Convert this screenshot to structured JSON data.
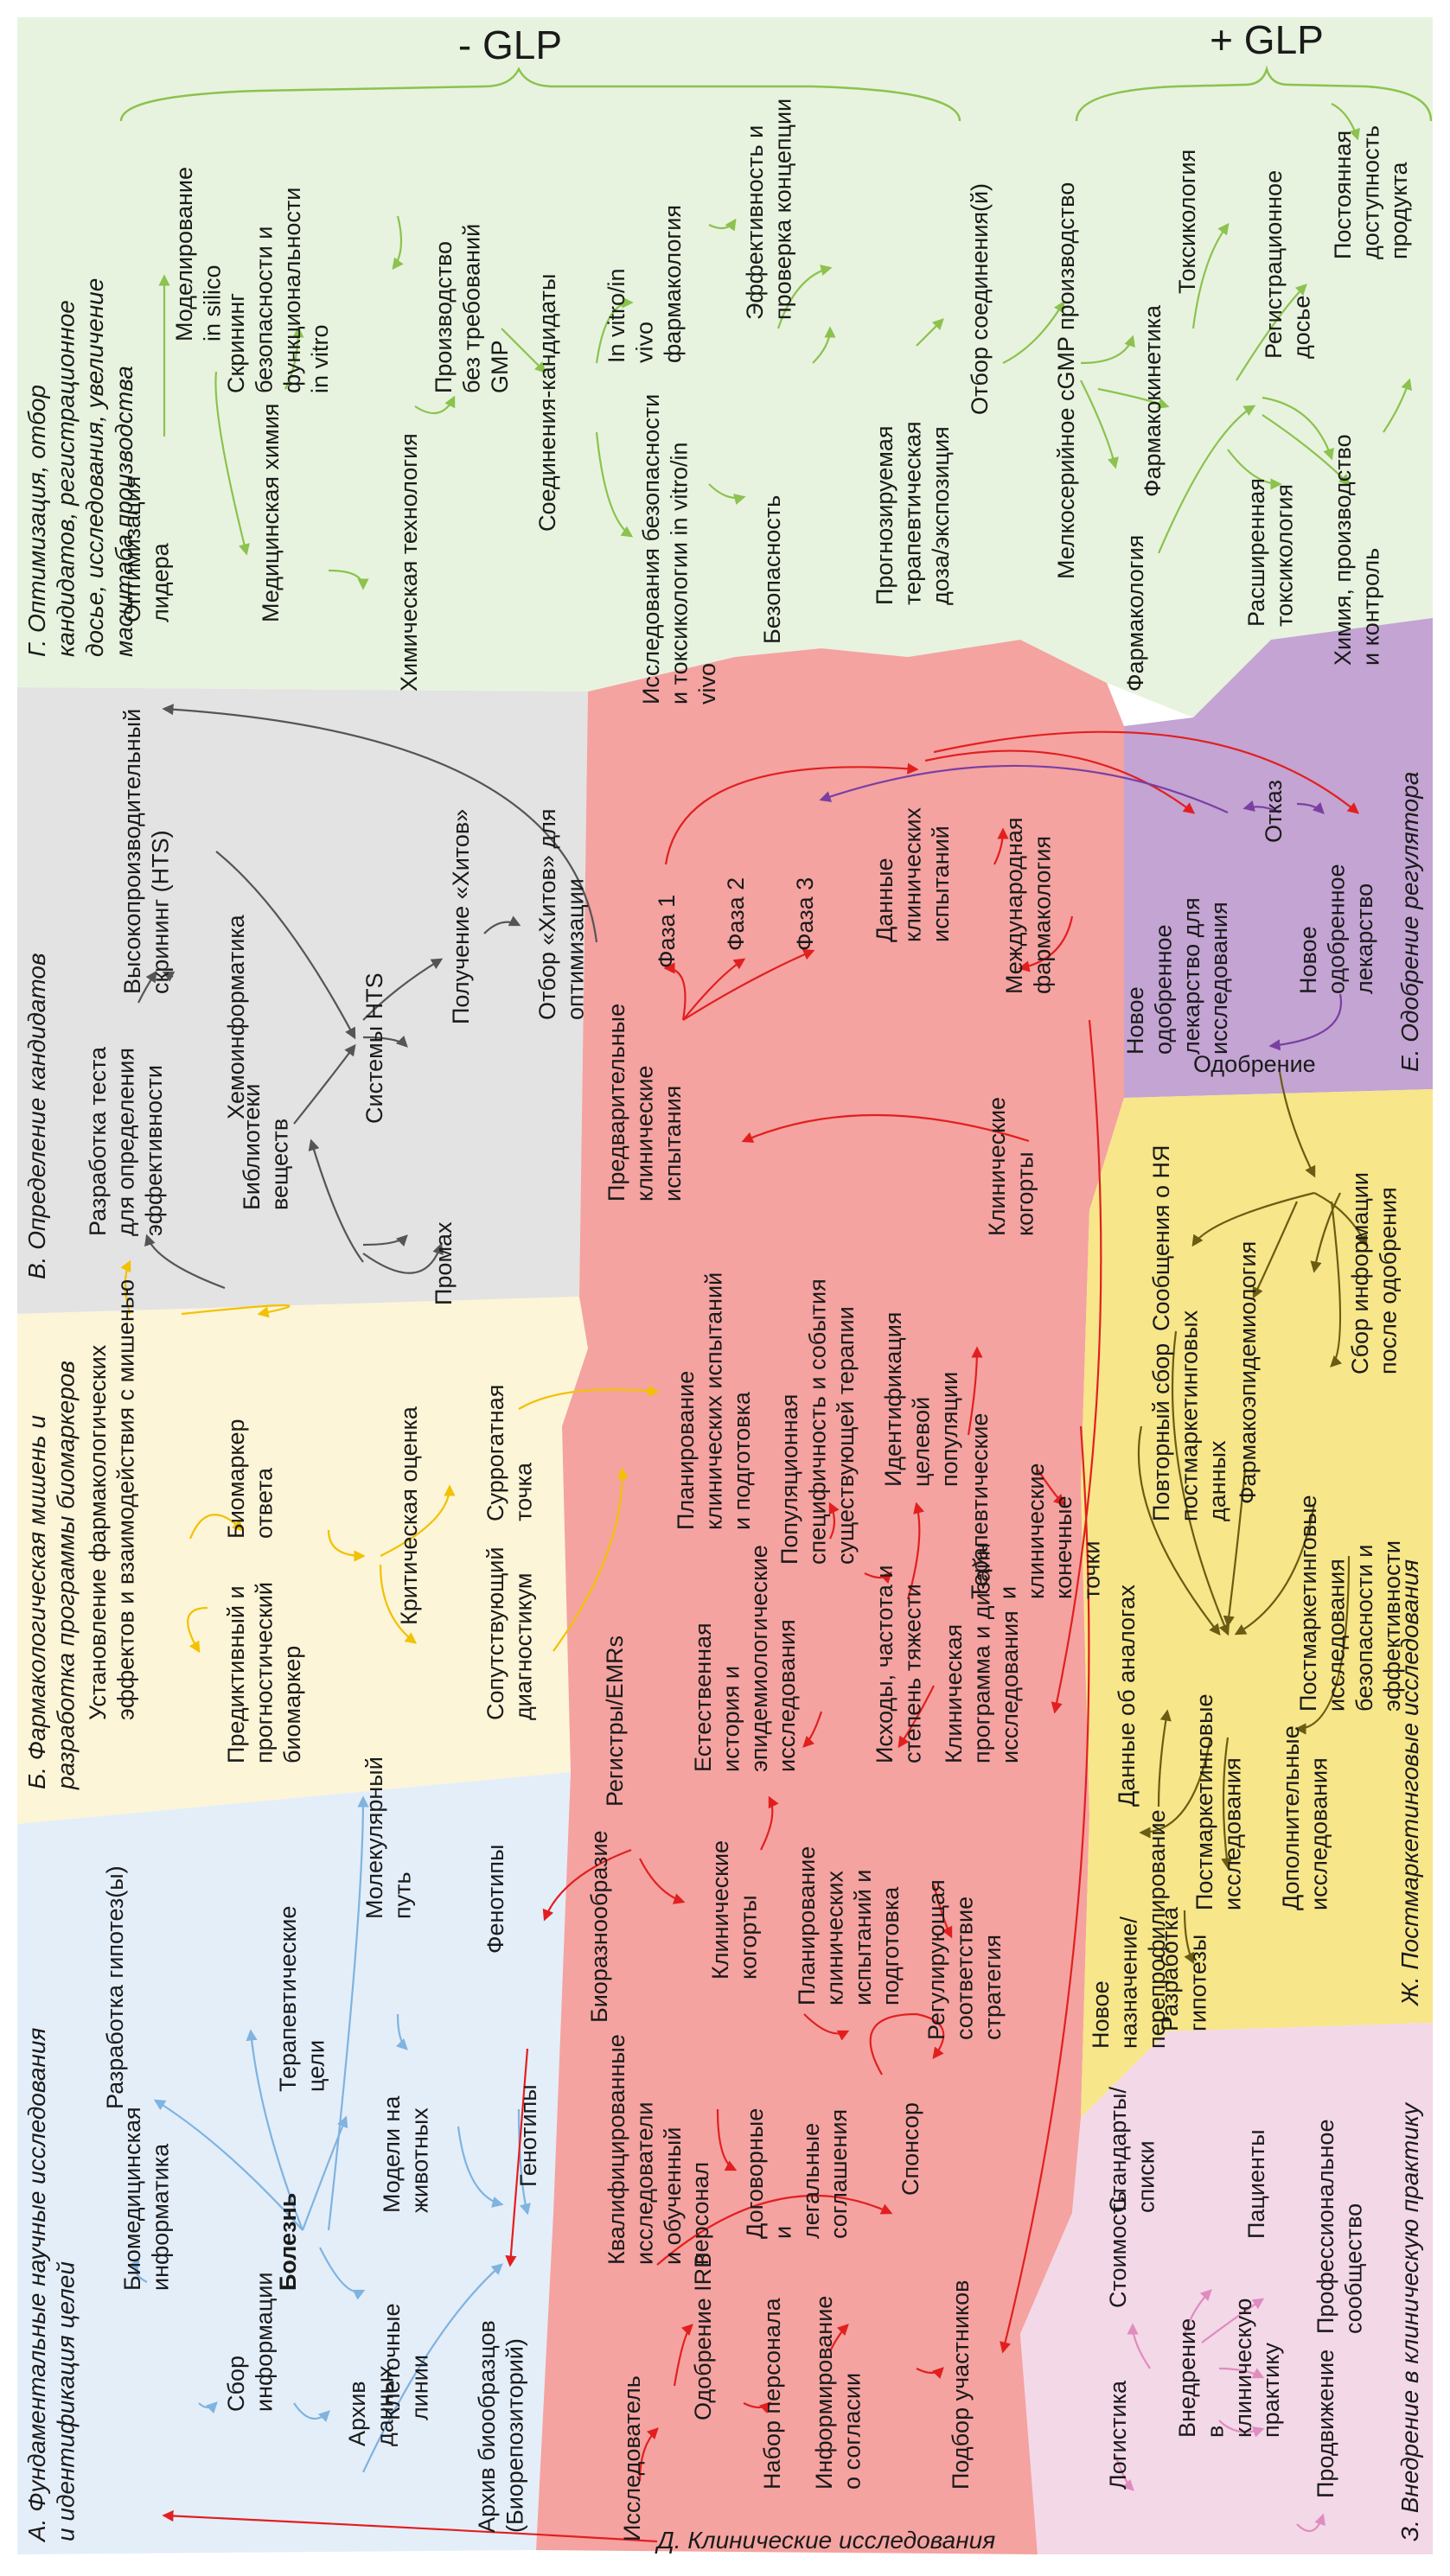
{
  "header": {
    "minus_glp": "- GLP",
    "plus_glp": "+ GLP"
  },
  "sections": {
    "a": "А. Фундаментальные научные исследования и идентификация целей",
    "b": "Б. Фармакологическая мишень и разработка программы биомаркеров",
    "v": "В. Определение кандидатов",
    "g": "Г. Оптимизация, отбор кандидатов, регистрационное досье, исследования, увеличение масштаба производства",
    "d": "Д. Клинические исследования",
    "e": "Е. Одобрение регулятора",
    "zh": "Ж. Постмаркетинговые исследования",
    "z": "З. Внедрение в клиническую практику"
  },
  "nodes": {
    "a": {
      "bioinformatics": "Биомедицинская информатика",
      "info_collection": "Сбор информации",
      "data_archive": "Архив данных",
      "biosample_archive": "Архив биообразцов (Биорепозиторий)",
      "hypothesis": "Разработка гипотез(ы)",
      "disease": "Болезнь",
      "cell_lines": "Клеточные линии",
      "genotypes": "Генотипы",
      "therapeutic_targets": "Терапевтические цели",
      "animal_models": "Модели на животных",
      "molecular_pathway": "Молекулярный путь",
      "phenotypes": "Фенотипы"
    },
    "b": {
      "pharm_effects": "Установление фармакологических эффектов и взаимодействия с мишенью",
      "predictive_biomarker": "Предиктивный и прогностический биомаркер",
      "response_biomarker": "Биомаркер ответа",
      "critical_assessment": "Критическая оценка",
      "companion_diagnostic": "Сопутствующий диагностикум",
      "surrogate_point": "Суррогатная точка"
    },
    "v": {
      "assay_dev": "Разработка теста для определения эффективности",
      "libraries": "Библиотеки веществ",
      "chemoinformatics": "Хемоинформатика",
      "hts": "Высокопроизводительный скрининг (HTS)",
      "hts_systems": "Системы HTS",
      "miss": "Промах",
      "hits": "Получение «Хитов»",
      "hit_selection": "Отбор «Хитов» для оптимизации"
    },
    "g": {
      "lead_opt": "Оптимизация лидера",
      "modeling": "Моделирование in silico",
      "med_chem": "Медицинская химия",
      "safety_screening": "Скрининг безопасности и функциональности in vitro",
      "chem_tech": "Химическая технология",
      "non_gmp": "Производство без требований GMP",
      "candidates": "Соединения-кандидаты",
      "in_vitro_vivo_pharm": "In vitro/in vivo фармакология",
      "safety_tox": "Исследования безопасности и токсикологии in vitro/in vivo",
      "safety": "Безопасность",
      "efficacy_poc": "Эффективность и проверка концепции",
      "dose_exposure": "Прогнозируемая терапевтическая доза/экспозиция",
      "compound_selection": "Отбор соединения(й)",
      "cgmp": "Мелкосерийное cGMP производство",
      "pharmacology": "Фармакология",
      "pharmacokinetics": "Фармакокинетика",
      "toxicology": "Токсикология",
      "extended_tox": "Расширенная токсикология",
      "reg_dossier": "Регистрационное досье",
      "cmc": "Химия, производство и контроль",
      "availability": "Постоянная доступность продукта"
    },
    "d": {
      "investigator": "Исследователь",
      "irb": "Одобрение IRB",
      "recruitment": "Набор персонала",
      "consent": "Информирование о согласии",
      "enrollment": "Подбор участников",
      "qualified": "Квалифицированные исследователи и обученный персонал",
      "agreements": "Договорные и легальные соглашения",
      "sponsor": "Спонсор",
      "biorepository": "Биоразнообразие",
      "cohorts": "Клинические когорты",
      "planning1": "Планирование клинических испытаний и подготовка",
      "reg_strategy": "Регулирующая соответствие стратегия",
      "registries": "Регистры/EMRs",
      "natural_history": "Естественная история и эпидемиологические исследования",
      "outcomes": "Исходы, частота и степень тяжести",
      "clinical_program": "Клиническая программа и дизайн исследования",
      "planning2": "Планирование клинических испытаний и подготовка",
      "pop_specificity": "Популяционная специфичность и события существующей терапии",
      "target_population": "Идентификация целевой популяции",
      "endpoints": "Терапевтические и клинические конечные точки",
      "preclinical": "Предварительные клинические испытания",
      "phase1": "Фаза 1",
      "phase2": "Фаза 2",
      "phase3": "Фаза 3",
      "trial_data": "Данные клинических испытаний",
      "intl_pharm": "Международная фармакология",
      "clinical_cohorts": "Клинические когорты"
    },
    "e": {
      "new_drug_research": "Новое одобренное лекарство для исследования",
      "refusal": "Отказ",
      "new_drug": "Новое одобренное лекарство",
      "approval": "Одобрение"
    },
    "zh": {
      "repurposing": "Новое назначение/ перепрофилирование",
      "hypothesis_dev": "Разработка гипотезы",
      "analog_data": "Данные об аналогах",
      "pm_research": "Постмаркетинговые исследования",
      "additional": "Дополнительные исследования",
      "adr_reports": "Сообщения о НЯ",
      "repeat_collection": "Повторный сбор постмаркетинговых данных",
      "pharmacoepi": "Фармакоэпидемиология",
      "pm_safety": "Постмаркетинговые исследования безопасности и эффективности",
      "post_approval": "Сбор информации после одобрения"
    },
    "z": {
      "cost": "Стоимость",
      "standards": "Стандарты/ списки",
      "logistics": "Логистика",
      "implementation": "Внедрение в клиническую практику",
      "patients": "Пациенты",
      "promotion": "Продвижение",
      "prof_community": "Профессиональное сообщество"
    }
  },
  "colors": {
    "a": "#e4eef9",
    "b": "#fdf5d8",
    "v": "#e3e3e3",
    "g": "#e7f3df",
    "d": "#f4a3a1",
    "e": "#c3a4d3",
    "zh": "#f7e68a",
    "z": "#f3d8e8",
    "arrow_a": "#7fb3e0",
    "arrow_b": "#f2c100",
    "arrow_v": "#555555",
    "arrow_g": "#8cc24e",
    "arrow_d": "#e21f1f",
    "arrow_e": "#7a3fa1",
    "arrow_zh": "#6a5c12",
    "arrow_z": "#df8cbf"
  }
}
